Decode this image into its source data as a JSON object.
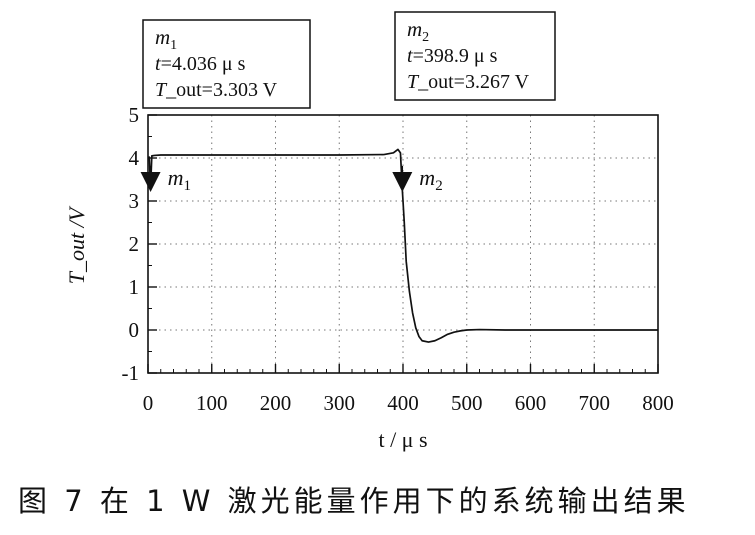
{
  "chart_data": {
    "type": "line",
    "xlabel": "t / μ s",
    "ylabel": "T_out /V",
    "xlim": [
      0,
      800
    ],
    "ylim": [
      -1,
      5
    ],
    "x_ticks": [
      0,
      100,
      200,
      300,
      400,
      500,
      600,
      700,
      800
    ],
    "y_ticks": [
      -1,
      0,
      1,
      2,
      3,
      4,
      5
    ],
    "grid": true,
    "series": [
      {
        "x": [
          0,
          2,
          4.036,
          6,
          10,
          20,
          100,
          200,
          300,
          370,
          385,
          392,
          396,
          398.9,
          400,
          402,
          405,
          410,
          415,
          420,
          425,
          430,
          440,
          450,
          460,
          470,
          480,
          490,
          500,
          520,
          560,
          600,
          700,
          800
        ],
        "y": [
          4.0,
          4.02,
          3.303,
          4.05,
          4.06,
          4.07,
          4.07,
          4.07,
          4.07,
          4.08,
          4.12,
          4.2,
          4.12,
          3.267,
          3.0,
          2.5,
          1.6,
          0.9,
          0.4,
          0.05,
          -0.15,
          -0.25,
          -0.28,
          -0.25,
          -0.18,
          -0.1,
          -0.05,
          -0.02,
          0.0,
          0.01,
          0.0,
          0.0,
          0.0,
          0.0
        ]
      }
    ],
    "markers": [
      {
        "name": "m",
        "sub": "1",
        "x": 4.036,
        "y": 3.303,
        "t_label": "=4.036 μ s",
        "out_label": "_out=3.303 V"
      },
      {
        "name": "m",
        "sub": "2",
        "x": 398.9,
        "y": 3.267,
        "t_label": "=398.9 μ s",
        "out_label": "_out=3.267 V"
      }
    ],
    "legend": "none"
  },
  "axis_label_parts": {
    "x_var": "t",
    "x_unit": " / μ s",
    "y_var": "T",
    "y_unit": "_out /V"
  },
  "marker_box_prefix": {
    "t": "t",
    "T": "T"
  },
  "caption": "图 7  在 1 W 激光能量作用下的系统输出结果"
}
